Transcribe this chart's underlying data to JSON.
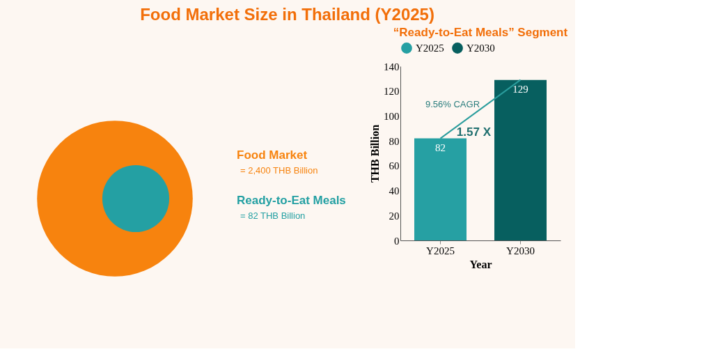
{
  "chart_data": [
    {
      "type": "other",
      "title": "Food Market Size in Thailand (Y2025)",
      "categories": [
        "Food Market",
        "Ready-to-Eat Meals"
      ],
      "values": [
        2400,
        82
      ],
      "value_labels": [
        "= 2,400 THB Billion",
        "= 82 THB Billion"
      ],
      "colors": [
        "#f7830e",
        "#24a0a3"
      ]
    },
    {
      "type": "bar",
      "title": "“Ready-to-Eat Meals” Segment",
      "categories": [
        "Y2025",
        "Y2030"
      ],
      "series": [
        {
          "name": "Y2025",
          "color": "#26a0a3",
          "values": [
            82,
            null
          ]
        },
        {
          "name": "Y2030",
          "color": "#075f5f",
          "values": [
            null,
            129
          ]
        }
      ],
      "xlabel": "Year",
      "ylabel": "THB Billion",
      "ylim": [
        0,
        140
      ],
      "yticks": [
        0,
        20,
        40,
        60,
        80,
        100,
        120,
        140
      ],
      "data_labels": true,
      "legend": "top",
      "grid": false,
      "annotations": [
        "9.56% CAGR",
        "1.57 X"
      ]
    }
  ]
}
